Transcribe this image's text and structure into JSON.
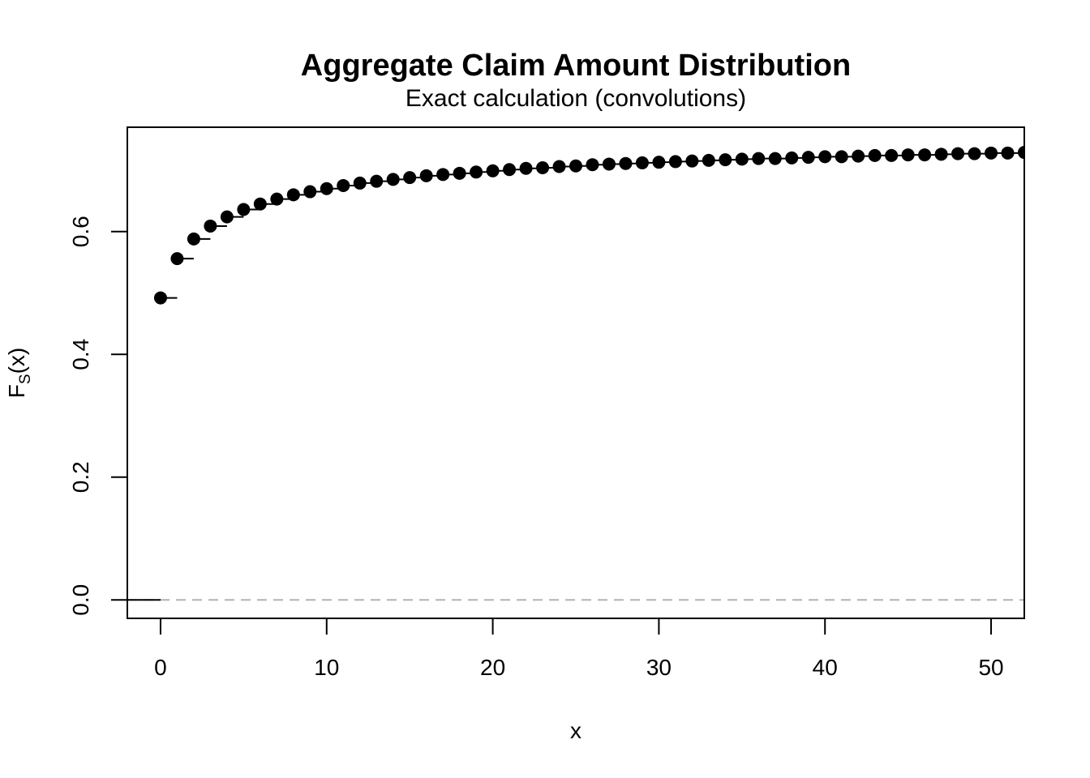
{
  "chart_data": {
    "type": "scatter",
    "title": "Aggregate Claim Amount Distribution",
    "subtitle": "Exact calculation (convolutions)",
    "xlabel": "x",
    "ylabel": {
      "main": "F",
      "sub": "S",
      "suffix": "(x)"
    },
    "xlim": [
      -2,
      52
    ],
    "ylim": [
      -0.03,
      0.77
    ],
    "x_ticks": [
      0,
      10,
      20,
      30,
      40,
      50
    ],
    "y_ticks": [
      0.0,
      0.2,
      0.4,
      0.6
    ],
    "y_tick_labels": [
      "0.0",
      "0.2",
      "0.4",
      "0.6"
    ],
    "grid": false,
    "reference_line": {
      "y": 0,
      "style": "dashed",
      "color": "#b3b3b3"
    },
    "step_function": true,
    "point_color": "#000000",
    "series": [
      {
        "x": [
          0,
          1,
          2,
          3,
          4,
          5,
          6,
          7,
          8,
          9,
          10,
          11,
          12,
          13,
          14,
          15,
          16,
          17,
          18,
          19,
          20,
          21,
          22,
          23,
          24,
          25,
          26,
          27,
          28,
          29,
          30,
          31,
          32,
          33,
          34,
          35,
          36,
          37,
          38,
          39,
          40,
          41,
          42,
          43,
          44,
          45,
          46,
          47,
          48,
          49,
          50,
          51,
          52
        ],
        "y": [
          0.492,
          0.556,
          0.588,
          0.609,
          0.624,
          0.636,
          0.645,
          0.653,
          0.66,
          0.665,
          0.67,
          0.675,
          0.679,
          0.682,
          0.685,
          0.688,
          0.691,
          0.693,
          0.695,
          0.697,
          0.699,
          0.701,
          0.703,
          0.704,
          0.706,
          0.707,
          0.709,
          0.71,
          0.711,
          0.712,
          0.713,
          0.714,
          0.715,
          0.716,
          0.717,
          0.718,
          0.719,
          0.719,
          0.72,
          0.721,
          0.722,
          0.722,
          0.723,
          0.724,
          0.724,
          0.725,
          0.725,
          0.726,
          0.727,
          0.727,
          0.728,
          0.728,
          0.729
        ]
      }
    ]
  }
}
